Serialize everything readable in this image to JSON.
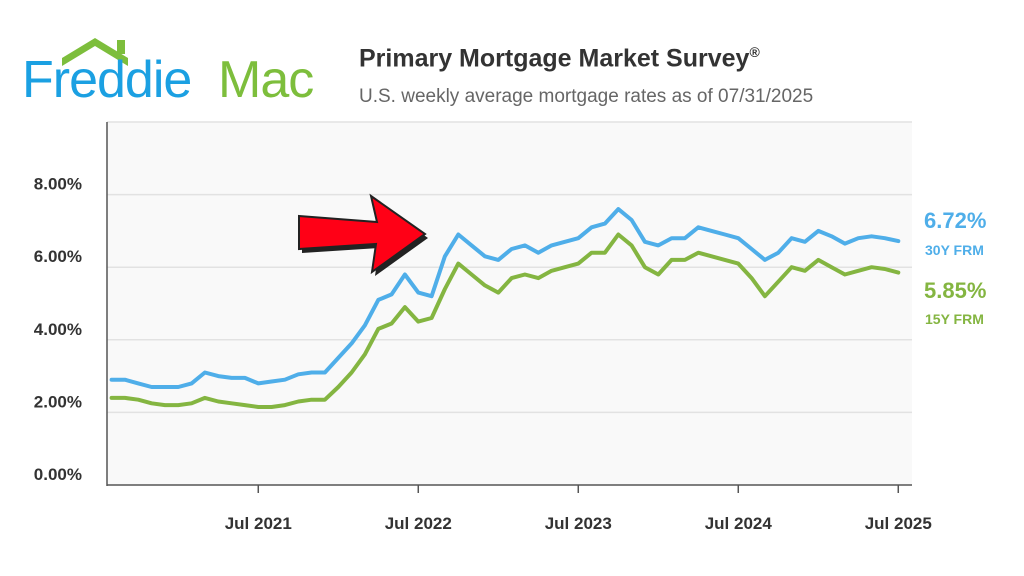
{
  "logo": {
    "word1": "Freddie",
    "word2": "Mac",
    "color1": "#1BA0E2",
    "color2": "#7DBE3C"
  },
  "header": {
    "title": "Primary Mortgage Market Survey",
    "title_mark": "®",
    "subtitle": "U.S. weekly average mortgage rates as of 07/31/2025"
  },
  "chart_data": {
    "type": "line",
    "title": "Primary Mortgage Market Survey®",
    "subtitle": "U.S. weekly average mortgage rates as of 07/31/2025",
    "ylim": [
      0,
      10
    ],
    "yticks": [
      0,
      2,
      4,
      6,
      8
    ],
    "ytick_labels": [
      "0.00%",
      "2.00%",
      "4.00%",
      "6.00%",
      "8.00%"
    ],
    "xticks": [
      "2021-07",
      "2022-07",
      "2023-07",
      "2024-07",
      "2025-07"
    ],
    "xtick_labels": [
      "Jul 2021",
      "Jul 2022",
      "Jul 2023",
      "Jul 2024",
      "Jul 2025"
    ],
    "grid": true,
    "x": [
      "2020-08",
      "2020-09",
      "2020-10",
      "2020-11",
      "2020-12",
      "2021-01",
      "2021-02",
      "2021-03",
      "2021-04",
      "2021-05",
      "2021-06",
      "2021-07",
      "2021-08",
      "2021-09",
      "2021-10",
      "2021-11",
      "2021-12",
      "2022-01",
      "2022-02",
      "2022-03",
      "2022-04",
      "2022-05",
      "2022-06",
      "2022-07",
      "2022-08",
      "2022-09",
      "2022-10",
      "2022-11",
      "2022-12",
      "2023-01",
      "2023-02",
      "2023-03",
      "2023-04",
      "2023-05",
      "2023-06",
      "2023-07",
      "2023-08",
      "2023-09",
      "2023-10",
      "2023-11",
      "2023-12",
      "2024-01",
      "2024-02",
      "2024-03",
      "2024-04",
      "2024-05",
      "2024-06",
      "2024-07",
      "2024-08",
      "2024-09",
      "2024-10",
      "2024-11",
      "2024-12",
      "2025-01",
      "2025-02",
      "2025-03",
      "2025-04",
      "2025-05",
      "2025-06",
      "2025-07"
    ],
    "series": [
      {
        "name": "30Y FRM",
        "color": "#4FAEE9",
        "last_label": "6.72%",
        "values": [
          2.9,
          2.9,
          2.8,
          2.7,
          2.7,
          2.7,
          2.8,
          3.1,
          3.0,
          2.95,
          2.95,
          2.8,
          2.85,
          2.9,
          3.05,
          3.1,
          3.1,
          3.5,
          3.9,
          4.4,
          5.1,
          5.25,
          5.8,
          5.3,
          5.2,
          6.3,
          6.9,
          6.6,
          6.3,
          6.2,
          6.5,
          6.6,
          6.4,
          6.6,
          6.7,
          6.8,
          7.1,
          7.2,
          7.6,
          7.3,
          6.7,
          6.6,
          6.8,
          6.8,
          7.1,
          7.0,
          6.9,
          6.8,
          6.5,
          6.2,
          6.4,
          6.8,
          6.7,
          7.0,
          6.85,
          6.65,
          6.8,
          6.85,
          6.8,
          6.72
        ]
      },
      {
        "name": "15Y FRM",
        "color": "#84B541",
        "last_label": "5.85%",
        "values": [
          2.4,
          2.4,
          2.35,
          2.25,
          2.2,
          2.2,
          2.25,
          2.4,
          2.3,
          2.25,
          2.2,
          2.15,
          2.15,
          2.2,
          2.3,
          2.35,
          2.35,
          2.7,
          3.1,
          3.6,
          4.3,
          4.45,
          4.9,
          4.5,
          4.6,
          5.4,
          6.1,
          5.8,
          5.5,
          5.3,
          5.7,
          5.8,
          5.7,
          5.9,
          6.0,
          6.1,
          6.4,
          6.4,
          6.9,
          6.6,
          6.0,
          5.8,
          6.2,
          6.2,
          6.4,
          6.3,
          6.2,
          6.1,
          5.7,
          5.2,
          5.6,
          6.0,
          5.9,
          6.2,
          6.0,
          5.8,
          5.9,
          6.0,
          5.95,
          5.85
        ]
      }
    ],
    "annotation": "red-arrow pointing to 2022 rate surge"
  }
}
